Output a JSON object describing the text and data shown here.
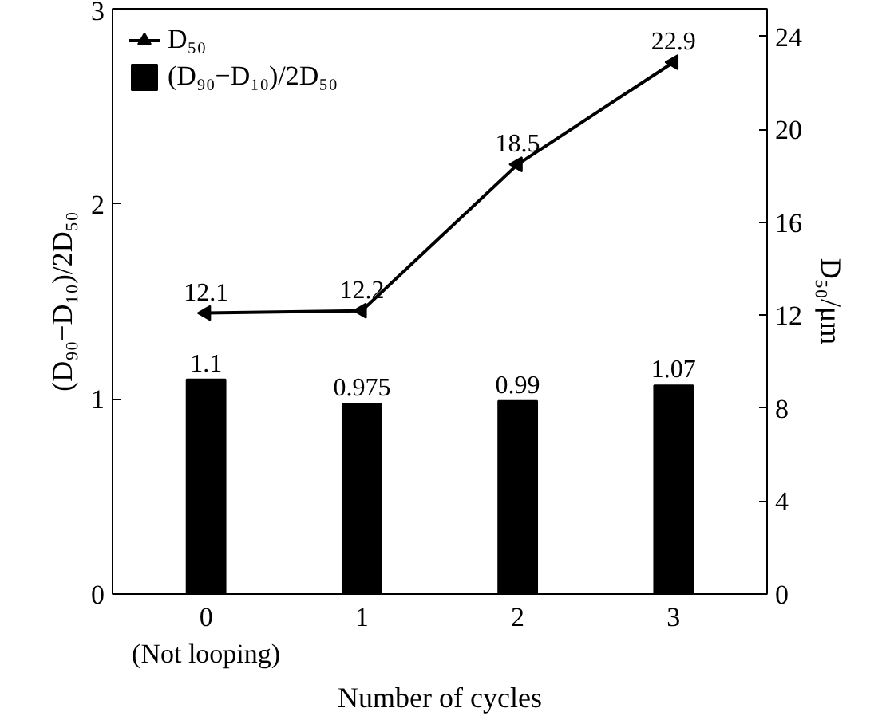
{
  "chart_data": {
    "type": "bar",
    "categories": [
      "0\n(Not looping)",
      "1",
      "2",
      "3"
    ],
    "xlabel": "Number of cycles",
    "ylabel": "(D₉₀−D₁₀)/2D₅₀",
    "y2label": "D₅₀/μm",
    "series": [
      {
        "name": "(D₉₀−D₁₀)/2D₅₀",
        "color": "#000000",
        "values": [
          1.1,
          0.975,
          0.99,
          1.07
        ]
      },
      {
        "name": "D₅₀",
        "type": "line",
        "axis": "y2",
        "color": "#000000",
        "marker": "triangle",
        "values": [
          12.1,
          12.2,
          18.5,
          22.9
        ]
      }
    ],
    "ylim": [
      0,
      3
    ],
    "yticks": [
      0,
      1,
      2,
      3
    ],
    "y2lim": [
      0,
      25.2
    ],
    "y2ticks": [
      0,
      4,
      8,
      12,
      16,
      20,
      24
    ],
    "data_labels": true,
    "legend": "top left",
    "grid": false
  }
}
